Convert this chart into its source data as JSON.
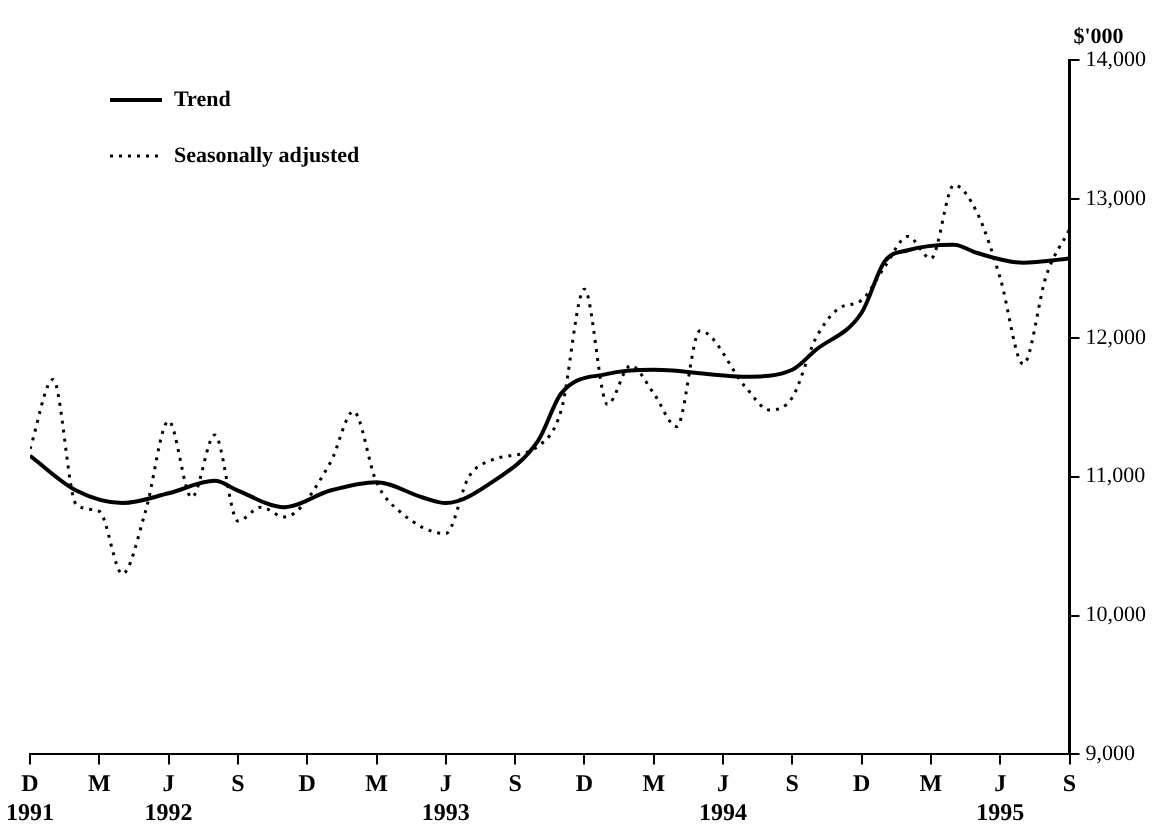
{
  "chart_data": {
    "type": "line",
    "ylabel": "$'000",
    "xlim": [
      "1991-12",
      "1995-09"
    ],
    "xticks": [
      {
        "value": "1991-12",
        "label": "D\n1991"
      },
      {
        "value": "1992-03",
        "label": "M"
      },
      {
        "value": "1992-06",
        "label": "J\n1992"
      },
      {
        "value": "1992-09",
        "label": "S"
      },
      {
        "value": "1992-12",
        "label": "D"
      },
      {
        "value": "1993-03",
        "label": "M"
      },
      {
        "value": "1993-06",
        "label": "J\n1993"
      },
      {
        "value": "1993-09",
        "label": "S"
      },
      {
        "value": "1993-12",
        "label": "D"
      },
      {
        "value": "1994-03",
        "label": "M"
      },
      {
        "value": "1994-06",
        "label": "J\n1994"
      },
      {
        "value": "1994-09",
        "label": "S"
      },
      {
        "value": "1994-12",
        "label": "D"
      },
      {
        "value": "1995-03",
        "label": "M"
      },
      {
        "value": "1995-06",
        "label": "J\n1995"
      },
      {
        "value": "1995-09",
        "label": "S"
      }
    ],
    "ylim": [
      9000,
      14000
    ],
    "yticks": [
      {
        "value": 9000,
        "label": "9,000"
      },
      {
        "value": 10000,
        "label": "10,000"
      },
      {
        "value": 11000,
        "label": "11,000"
      },
      {
        "value": 12000,
        "label": "12,000"
      },
      {
        "value": 13000,
        "label": "13,000"
      },
      {
        "value": 14000,
        "label": "14,000"
      }
    ],
    "grid": false,
    "legend": "top left",
    "marker": "none",
    "series": [
      {
        "name": "Trend",
        "color": "#000000",
        "line_style": "solid",
        "x": [
          "1991-12",
          "1992-02",
          "1992-04",
          "1992-06",
          "1992-08",
          "1992-09",
          "1992-11",
          "1993-01",
          "1993-03",
          "1993-05",
          "1993-06",
          "1993-08",
          "1993-10",
          "1993-11",
          "1994-01",
          "1994-03",
          "1994-07",
          "1994-09",
          "1994-10",
          "1994-12",
          "1995-01",
          "1995-02",
          "1995-04",
          "1995-05",
          "1995-07",
          "1995-09"
        ],
        "values": [
          11150,
          10900,
          10810,
          10880,
          10970,
          10900,
          10780,
          10900,
          10960,
          10850,
          10810,
          10960,
          11260,
          11600,
          11740,
          11770,
          11720,
          11770,
          11910,
          12180,
          12550,
          12630,
          12670,
          12610,
          12540,
          12570
        ]
      },
      {
        "name": "Seasonally adjusted",
        "color": "#000000",
        "line_style": "dotted",
        "x": [
          "1991-12",
          "1992-01",
          "1992-02",
          "1992-03",
          "1992-04",
          "1992-05",
          "1992-06",
          "1992-07",
          "1992-08",
          "1992-09",
          "1992-10",
          "1992-11",
          "1993-01",
          "1993-02",
          "1993-03",
          "1993-04",
          "1993-06",
          "1993-07",
          "1993-08",
          "1993-10",
          "1993-11",
          "1993-12",
          "1994-01",
          "1994-02",
          "1994-03",
          "1994-04",
          "1994-05",
          "1994-07",
          "1994-08",
          "1994-09",
          "1994-10",
          "1994-11",
          "1994-12",
          "1995-01",
          "1995-02",
          "1995-03",
          "1995-04",
          "1995-05",
          "1995-06",
          "1995-07",
          "1995-08",
          "1995-09"
        ],
        "values": [
          11200,
          11700,
          10800,
          10750,
          10300,
          10750,
          11400,
          10850,
          11300,
          10680,
          10780,
          10710,
          11100,
          11470,
          10960,
          10750,
          10590,
          11000,
          11120,
          11220,
          11480,
          12350,
          11520,
          11800,
          11600,
          11360,
          12050,
          11640,
          11480,
          11570,
          11990,
          12210,
          12270,
          12510,
          12730,
          12570,
          13100,
          12900,
          12430,
          11810,
          12450,
          12780
        ]
      }
    ]
  }
}
